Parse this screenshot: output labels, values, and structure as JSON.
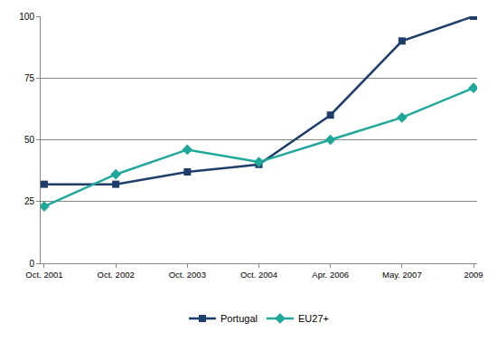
{
  "chart_data": {
    "type": "line",
    "categories": [
      "Oct. 2001",
      "Oct. 2002",
      "Oct. 2003",
      "Oct. 2004",
      "Apr. 2006",
      "May. 2007",
      "2009"
    ],
    "series": [
      {
        "name": "Portugal",
        "color": "#1f3d6b",
        "marker": "square",
        "line_style": "solid",
        "values": [
          32,
          32,
          37,
          40,
          60,
          90,
          100
        ]
      },
      {
        "name": "EU27+",
        "color": "#1fa89a",
        "marker": "diamond",
        "line_style": "solid",
        "values": [
          23,
          36,
          46,
          41,
          50,
          59,
          71
        ]
      }
    ],
    "ylim": [
      0,
      100
    ],
    "yticks": [
      0,
      25,
      50,
      75,
      100
    ],
    "grid": true,
    "legend": "bottom"
  }
}
